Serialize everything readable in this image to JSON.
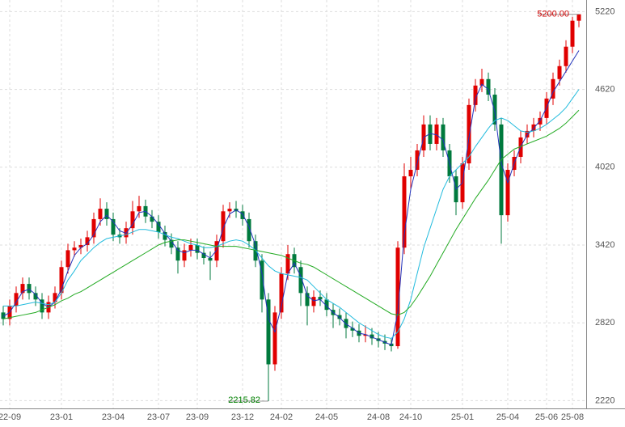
{
  "chart_data": {
    "type": "candlestick",
    "categories": [
      null,
      "22-09",
      null,
      null,
      null,
      null,
      null,
      null,
      null,
      "23-01",
      null,
      null,
      null,
      null,
      null,
      null,
      null,
      "23-04",
      null,
      null,
      null,
      null,
      null,
      null,
      "23-07",
      null,
      null,
      null,
      null,
      null,
      "23-09",
      null,
      null,
      null,
      null,
      null,
      null,
      "23-12",
      null,
      null,
      null,
      null,
      null,
      "24-02",
      null,
      null,
      null,
      null,
      null,
      null,
      "24-05",
      null,
      null,
      null,
      null,
      null,
      null,
      null,
      "24-08",
      null,
      null,
      null,
      null,
      "24-10",
      null,
      null,
      null,
      null,
      null,
      null,
      null,
      "25-01",
      null,
      null,
      null,
      null,
      null,
      null,
      "25-04",
      null,
      null,
      null,
      null,
      null,
      "25-06",
      null,
      null,
      null,
      "25-08",
      null
    ],
    "open": [
      2900,
      2850,
      2950,
      3050,
      3120,
      3050,
      3000,
      2900,
      2980,
      3050,
      3250,
      3380,
      3400,
      3420,
      3480,
      3620,
      3700,
      3620,
      3500,
      3480,
      3550,
      3680,
      3720,
      3640,
      3600,
      3520,
      3460,
      3400,
      3300,
      3380,
      3420,
      3360,
      3320,
      3300,
      3450,
      3680,
      3700,
      3680,
      3620,
      3450,
      3300,
      3000,
      2500,
      2900,
      3200,
      3350,
      3250,
      3050,
      2950,
      3020,
      3000,
      2920,
      2880,
      2850,
      2780,
      2760,
      2720,
      2730,
      2700,
      2680,
      2660,
      2640,
      3400,
      3950,
      4000,
      4150,
      4350,
      4200,
      4350,
      4150,
      3950,
      3750,
      4050,
      4500,
      4650,
      4700,
      4580,
      4350,
      3650,
      4000,
      4100,
      4250,
      4300,
      4350,
      4400,
      4550,
      4700,
      4800,
      4950,
      5150
    ],
    "high": [
      2950,
      3000,
      3100,
      3170,
      3170,
      3100,
      3050,
      3030,
      3100,
      3300,
      3430,
      3450,
      3470,
      3530,
      3670,
      3780,
      3750,
      3670,
      3550,
      3600,
      3760,
      3800,
      3770,
      3690,
      3650,
      3570,
      3510,
      3450,
      3430,
      3470,
      3470,
      3410,
      3370,
      3500,
      3730,
      3750,
      3760,
      3730,
      3670,
      3500,
      3350,
      3050,
      2950,
      3250,
      3420,
      3400,
      3300,
      3100,
      3070,
      3070,
      3050,
      2970,
      2930,
      2900,
      2830,
      2810,
      2800,
      2780,
      2750,
      2730,
      2700,
      3450,
      4050,
      4100,
      4200,
      4420,
      4420,
      4400,
      4400,
      4200,
      4000,
      4100,
      4550,
      4700,
      4780,
      4750,
      4630,
      4400,
      4050,
      4150,
      4300,
      4350,
      4400,
      4450,
      4600,
      4750,
      4850,
      5000,
      5180,
      5200
    ],
    "low": [
      2800,
      2800,
      2900,
      3000,
      3000,
      2950,
      2850,
      2850,
      2930,
      3000,
      3200,
      3330,
      3350,
      3370,
      3430,
      3570,
      3570,
      3450,
      3430,
      3430,
      3500,
      3630,
      3590,
      3550,
      3470,
      3410,
      3350,
      3200,
      3250,
      3330,
      3310,
      3270,
      3150,
      3250,
      3400,
      3630,
      3630,
      3570,
      3400,
      3250,
      2900,
      2215.82,
      2450,
      2850,
      3150,
      3200,
      2950,
      2800,
      2900,
      2950,
      2870,
      2780,
      2800,
      2700,
      2710,
      2670,
      2670,
      2650,
      2630,
      2610,
      2600,
      2620,
      3350,
      3850,
      3950,
      4100,
      4150,
      4150,
      4100,
      3900,
      3650,
      3700,
      4000,
      4450,
      4600,
      4530,
      4300,
      3430,
      3600,
      3950,
      4050,
      4200,
      4250,
      4300,
      4350,
      4500,
      4650,
      4750,
      4900,
      5100
    ],
    "close": [
      2850,
      2950,
      3050,
      3120,
      3050,
      3000,
      2900,
      2980,
      3050,
      3250,
      3380,
      3400,
      3420,
      3480,
      3620,
      3700,
      3620,
      3500,
      3480,
      3550,
      3680,
      3720,
      3640,
      3600,
      3520,
      3460,
      3400,
      3300,
      3380,
      3420,
      3360,
      3320,
      3300,
      3450,
      3680,
      3700,
      3680,
      3620,
      3450,
      3300,
      3000,
      2500,
      2900,
      3200,
      3350,
      3250,
      3050,
      2950,
      3020,
      3000,
      2920,
      2880,
      2850,
      2780,
      2760,
      2720,
      2730,
      2700,
      2680,
      2660,
      2640,
      3400,
      3950,
      4000,
      4150,
      4350,
      4200,
      4350,
      4150,
      3950,
      3750,
      4050,
      4500,
      4650,
      4700,
      4580,
      4350,
      3650,
      4000,
      4100,
      4250,
      4300,
      4350,
      4400,
      4550,
      4700,
      4800,
      4950,
      5150,
      5200
    ],
    "up_color": "#e00000",
    "down_color": "#007a3d",
    "lines": [
      {
        "color": "#2233bb",
        "values": [
          2870,
          2900,
          2980,
          3060,
          3080,
          3040,
          2970,
          2940,
          2980,
          3080,
          3220,
          3340,
          3400,
          3430,
          3500,
          3600,
          3650,
          3600,
          3530,
          3510,
          3580,
          3670,
          3680,
          3640,
          3580,
          3510,
          3450,
          3380,
          3360,
          3380,
          3380,
          3350,
          3320,
          3380,
          3550,
          3660,
          3690,
          3660,
          3560,
          3420,
          3200,
          2850,
          2750,
          2950,
          3200,
          3280,
          3180,
          3030,
          2990,
          3000,
          2950,
          2900,
          2860,
          2810,
          2780,
          2740,
          2730,
          2710,
          2690,
          2670,
          2650,
          2900,
          3500,
          3850,
          4050,
          4250,
          4280,
          4270,
          4230,
          4050,
          3850,
          3900,
          4250,
          4550,
          4660,
          4620,
          4450,
          4050,
          3900,
          4050,
          4180,
          4270,
          4320,
          4380,
          4480,
          4600,
          4680,
          4760,
          4840,
          4920
        ]
      },
      {
        "color": "#22bbdd",
        "values": [
          2950,
          2950,
          2950,
          2960,
          2970,
          2980,
          2970,
          2960,
          2980,
          3050,
          3150,
          3220,
          3300,
          3350,
          3400,
          3440,
          3470,
          3480,
          3490,
          3500,
          3520,
          3540,
          3540,
          3530,
          3520,
          3500,
          3480,
          3470,
          3450,
          3430,
          3420,
          3400,
          3400,
          3410,
          3430,
          3450,
          3460,
          3450,
          3420,
          3380,
          3320,
          3260,
          3220,
          3200,
          3190,
          3180,
          3170,
          3150,
          3100,
          3050,
          3000,
          2970,
          2940,
          2900,
          2860,
          2820,
          2790,
          2760,
          2730,
          2710,
          2700,
          2750,
          2850,
          3000,
          3200,
          3400,
          3550,
          3700,
          3850,
          3950,
          4000,
          4050,
          4100,
          4180,
          4250,
          4320,
          4380,
          4400,
          4380,
          4340,
          4300,
          4290,
          4300,
          4320,
          4350,
          4390,
          4430,
          4480,
          4550,
          4620
        ]
      },
      {
        "color": "#22aa22",
        "values": [
          2850,
          2860,
          2870,
          2880,
          2890,
          2900,
          2920,
          2940,
          2960,
          2990,
          3010,
          3040,
          3060,
          3090,
          3120,
          3150,
          3180,
          3210,
          3240,
          3270,
          3300,
          3330,
          3360,
          3390,
          3420,
          3440,
          3450,
          3460,
          3460,
          3450,
          3440,
          3430,
          3420,
          3410,
          3410,
          3410,
          3410,
          3400,
          3390,
          3380,
          3370,
          3360,
          3350,
          3340,
          3320,
          3300,
          3280,
          3270,
          3250,
          3220,
          3190,
          3160,
          3130,
          3100,
          3070,
          3040,
          3010,
          2980,
          2950,
          2920,
          2890,
          2880,
          2900,
          2950,
          3020,
          3100,
          3180,
          3270,
          3360,
          3450,
          3540,
          3620,
          3700,
          3780,
          3850,
          3920,
          4000,
          4080,
          4120,
          4160,
          4180,
          4200,
          4220,
          4240,
          4260,
          4290,
          4320,
          4360,
          4410,
          4460
        ]
      }
    ],
    "max_label": {
      "value": 5200,
      "label": "5200.00",
      "color": "#d00000"
    },
    "min_label": {
      "value": 2215.82,
      "label": "2215.82",
      "color": "#008000"
    },
    "ylim": [
      2160,
      5310
    ],
    "yticks": [
      2220,
      2820,
      3420,
      4020,
      4620,
      5220
    ],
    "grid": true
  }
}
